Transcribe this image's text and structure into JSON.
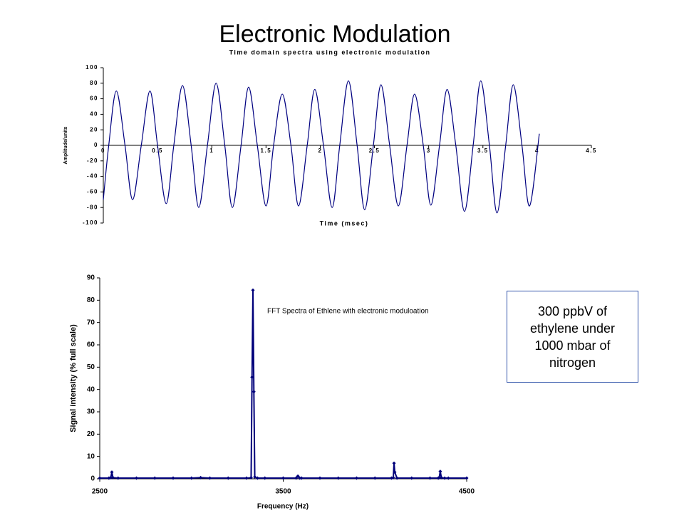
{
  "title": "Electronic Modulation",
  "annotation": "300 ppbV of ethylene under 1000 mbar of nitrogen",
  "chart_data": [
    {
      "type": "line",
      "title": "Time domain spectra using electronic modulation",
      "x_label": "Time (msec)",
      "y_label": "Amplitude/units",
      "x": [
        0,
        0.05,
        0.12,
        0.2,
        0.27,
        0.35,
        0.43,
        0.5,
        0.58,
        0.65,
        0.73,
        0.81,
        0.88,
        0.96,
        1.04,
        1.12,
        1.19,
        1.27,
        1.34,
        1.42,
        1.5,
        1.57,
        1.65,
        1.73,
        1.8,
        1.88,
        1.95,
        2.03,
        2.11,
        2.18,
        2.26,
        2.34,
        2.41,
        2.49,
        2.56,
        2.64,
        2.72,
        2.8,
        2.87,
        2.95,
        3.02,
        3.1,
        3.17,
        3.25,
        3.33,
        3.41,
        3.48,
        3.56,
        3.63,
        3.71,
        3.78,
        3.86,
        3.93,
        4.02
      ],
      "values": [
        -70,
        0,
        70,
        0,
        -70,
        0,
        70,
        0,
        -75,
        0,
        77,
        0,
        -80,
        0,
        80,
        0,
        -80,
        0,
        75,
        0,
        -78,
        0,
        66,
        0,
        -78,
        0,
        72,
        0,
        -80,
        0,
        83,
        0,
        -83,
        0,
        78,
        0,
        -78,
        0,
        66,
        0,
        -77,
        0,
        72,
        0,
        -85,
        0,
        83,
        0,
        -87,
        0,
        78,
        0,
        -78,
        15
      ],
      "color": "#000080",
      "smooth": true,
      "xlim": [
        0,
        4.5
      ],
      "xticks": [
        0,
        0.5,
        1,
        1.5,
        2,
        2.5,
        3,
        3.5,
        4,
        4.5
      ],
      "ylim": [
        -100,
        100
      ],
      "yticks": [
        -100,
        -80,
        -60,
        -40,
        -20,
        0,
        20,
        40,
        60,
        80,
        100
      ]
    },
    {
      "type": "line",
      "title": "FFT Spectra of Ethlene with electronic moduloation",
      "x_label": "Frequency (Hz)",
      "y_label": "Signal intensity (% full scale)",
      "x": [
        2500,
        2550,
        2560,
        2566,
        2572,
        2600,
        2700,
        2800,
        2900,
        3000,
        3050,
        3100,
        3200,
        3300,
        3325,
        3330,
        3335,
        3340,
        3345,
        3360,
        3400,
        3500,
        3570,
        3580,
        3590,
        3600,
        3700,
        3800,
        3900,
        4000,
        4090,
        4100,
        4104,
        4108,
        4120,
        4200,
        4300,
        4345,
        4350,
        4356,
        4362,
        4380,
        4400,
        4500
      ],
      "values": [
        0.3,
        0.3,
        0.5,
        3,
        0.5,
        0.3,
        0.3,
        0.3,
        0.3,
        0.3,
        0.5,
        0.3,
        0.3,
        0.3,
        0.5,
        45.5,
        84.5,
        39,
        0.8,
        0.3,
        0.3,
        0.3,
        0.3,
        1.2,
        0.3,
        0.3,
        0.3,
        0.3,
        0.3,
        0.3,
        0.3,
        0.5,
        7,
        3,
        0.3,
        0.3,
        0.3,
        0.3,
        0.5,
        3.3,
        0.5,
        0.3,
        0.3,
        0.3
      ],
      "color": "#00007a",
      "marker": "diamond",
      "xlim": [
        2500,
        4500
      ],
      "xticks": [
        2500,
        3500,
        4500
      ],
      "ylim": [
        0,
        90
      ],
      "yticks": [
        0,
        10,
        20,
        30,
        40,
        50,
        60,
        70,
        80,
        90
      ]
    }
  ]
}
